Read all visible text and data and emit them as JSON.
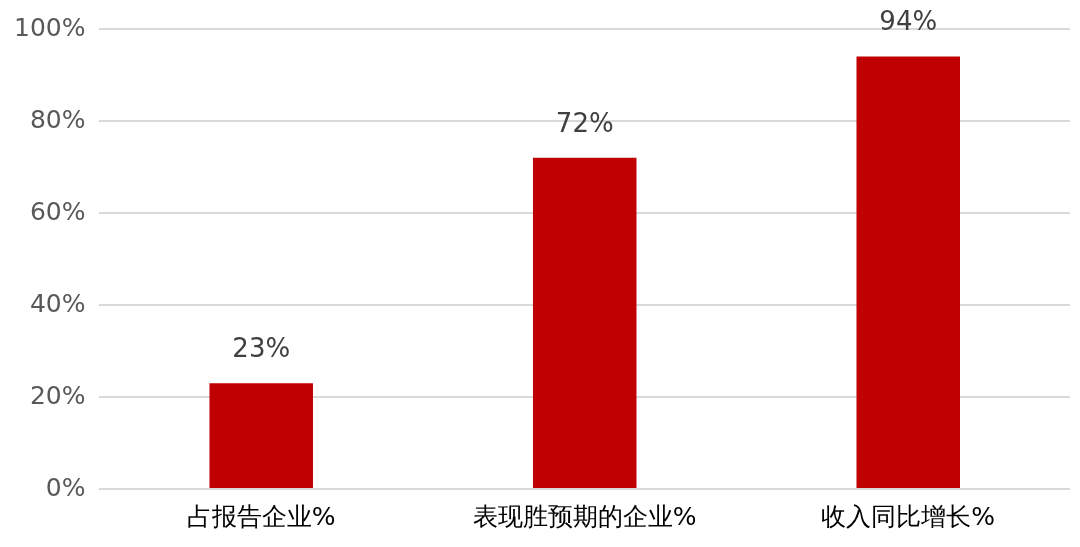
{
  "chart_data": {
    "type": "bar",
    "categories": [
      "占报告企业%",
      "表现胜预期的企业%",
      "收入同比增长%"
    ],
    "values": [
      23,
      72,
      94
    ],
    "value_labels": [
      "23%",
      "72%",
      "94%"
    ],
    "color": "#c00000",
    "ylim": [
      0,
      100
    ],
    "yticks": [
      {
        "value": 0,
        "label": "0%"
      },
      {
        "value": 20,
        "label": "20%"
      },
      {
        "value": 40,
        "label": "40%"
      },
      {
        "value": 60,
        "label": "60%"
      },
      {
        "value": 80,
        "label": "80%"
      },
      {
        "value": 100,
        "label": "100%"
      }
    ],
    "grid": "y"
  }
}
